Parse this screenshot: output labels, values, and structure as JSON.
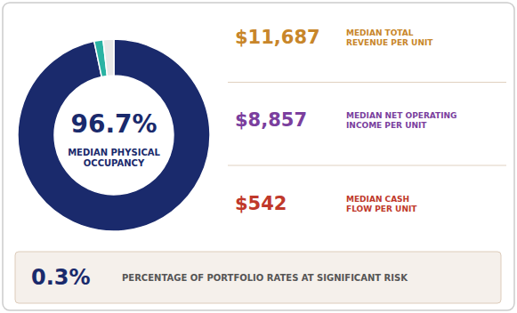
{
  "chart_data": {
    "type": "donut",
    "values": [
      96.7,
      1.5,
      1.8
    ],
    "colors": [
      "#1a2a6c",
      "#2ab3a3",
      "#e8e8e8"
    ],
    "annotations": [
      {
        "text": "96.7%",
        "color": "#1a2a6c"
      },
      {
        "text": "MEDIAN PHYSICAL\nOCCUPANCY",
        "color": "#1a2a6c"
      },
      {
        "text": "$11,687",
        "color": "#c8862a"
      },
      {
        "text": "MEDIAN TOTAL\nREVENUE PER UNIT",
        "color": "#c8862a"
      },
      {
        "text": "$8,857",
        "color": "#7b3f9e"
      },
      {
        "text": "MEDIAN NET OPERATING\nINCOME PER UNIT",
        "color": "#7b3f9e"
      },
      {
        "text": "$542",
        "color": "#c0392b"
      },
      {
        "text": "MEDIAN CASH\nFLOW PER UNIT",
        "color": "#c0392b"
      },
      {
        "text": "0.3%",
        "color": "#1a2a6c"
      },
      {
        "text": "PERCENTAGE OF PORTFOLIO RATES AT SIGNIFICANT RISK",
        "color": "#555555"
      }
    ]
  }
}
